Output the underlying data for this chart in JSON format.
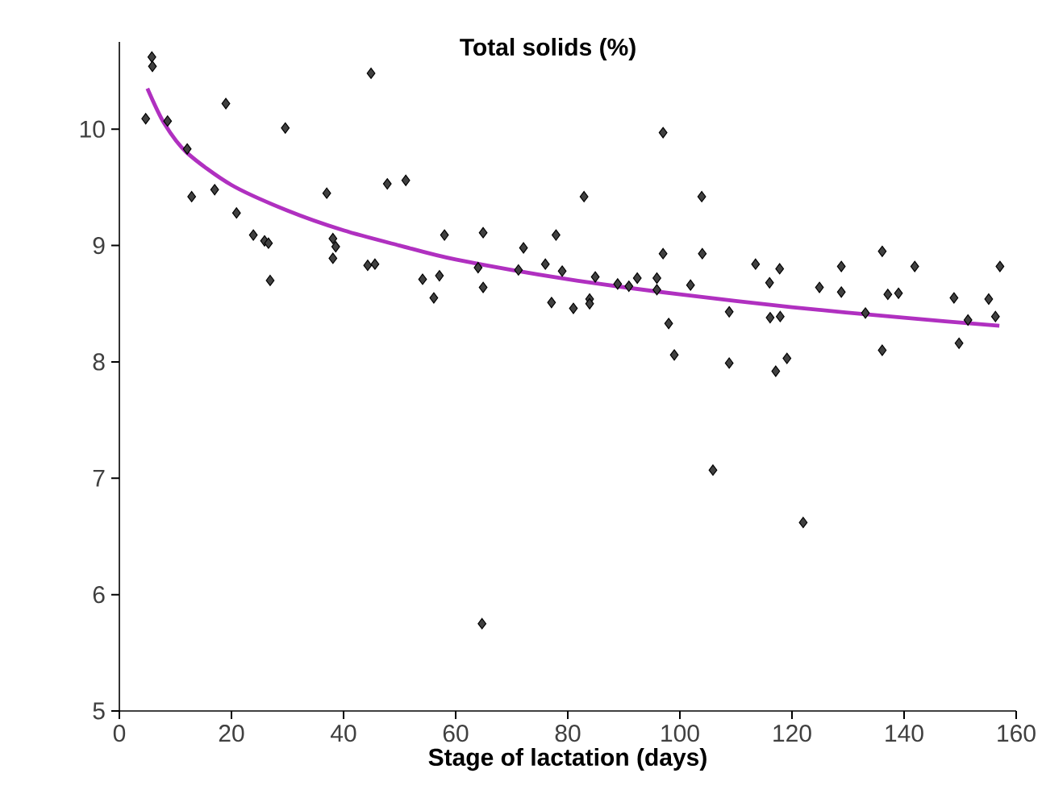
{
  "chart_data": {
    "type": "scatter",
    "title": "Total solids (%)",
    "xlabel": "Stage of lactation (days)",
    "xlim": [
      0,
      160
    ],
    "ylim": [
      5,
      10.75
    ],
    "xticks": [
      0,
      20,
      40,
      60,
      80,
      100,
      120,
      140,
      160
    ],
    "yticks": [
      5,
      6,
      7,
      8,
      9,
      10
    ],
    "marker": "diamond",
    "grid": false,
    "series": [
      {
        "color": "#404040",
        "x": [
          4.7,
          5.8,
          5.9,
          8.6,
          12.1,
          12.9,
          17.0,
          19.0,
          20.9,
          23.9,
          25.9,
          26.6,
          26.9,
          29.6,
          37.0,
          38.1,
          38.6,
          38.1,
          44.3,
          44.9,
          45.6,
          47.8,
          51.1,
          54.1,
          56.1,
          57.1,
          58.0,
          64.0,
          64.9,
          64.9,
          64.7,
          71.2,
          72.1,
          76.0,
          77.1,
          77.9,
          79.0,
          81.0,
          82.9,
          83.9,
          83.9,
          84.9,
          88.9,
          90.9,
          92.4,
          95.9,
          95.9,
          97.0,
          97.0,
          98.0,
          99.0,
          101.9,
          103.9,
          104.0,
          105.9,
          108.8,
          108.8,
          113.5,
          116.0,
          116.1,
          117.1,
          117.8,
          117.9,
          119.1,
          122.0,
          124.9,
          128.8,
          128.8,
          133.1,
          136.1,
          136.1,
          137.1,
          139.0,
          141.9,
          148.9,
          149.8,
          151.4,
          155.1,
          156.3,
          157.1
        ],
        "values": [
          10.09,
          10.62,
          10.54,
          10.07,
          9.83,
          9.42,
          9.48,
          10.22,
          9.28,
          9.09,
          9.04,
          9.02,
          8.7,
          10.01,
          9.45,
          9.06,
          8.99,
          8.89,
          8.83,
          10.48,
          8.84,
          9.53,
          9.56,
          8.71,
          8.55,
          8.74,
          9.09,
          8.81,
          9.11,
          8.64,
          5.75,
          8.79,
          8.98,
          8.84,
          8.51,
          9.09,
          8.78,
          8.46,
          9.42,
          8.54,
          8.5,
          8.73,
          8.67,
          8.65,
          8.72,
          8.72,
          8.62,
          8.93,
          9.97,
          8.33,
          8.06,
          8.66,
          9.42,
          8.93,
          7.07,
          8.43,
          7.99,
          8.84,
          8.68,
          8.38,
          7.92,
          8.8,
          8.39,
          8.03,
          6.62,
          8.64,
          8.82,
          8.6,
          8.42,
          8.95,
          8.1,
          8.58,
          8.59,
          8.82,
          8.55,
          8.16,
          8.36,
          8.54,
          8.39,
          8.82
        ]
      },
      {
        "type": "line",
        "marker": "none",
        "color": "#b030c0",
        "x": [
          5,
          8,
          12,
          20,
          30,
          40,
          50,
          60,
          80,
          100,
          120,
          140,
          157
        ],
        "values": [
          10.35,
          10.05,
          9.8,
          9.52,
          9.3,
          9.13,
          9.0,
          8.88,
          8.71,
          8.58,
          8.47,
          8.38,
          8.31
        ]
      }
    ]
  }
}
